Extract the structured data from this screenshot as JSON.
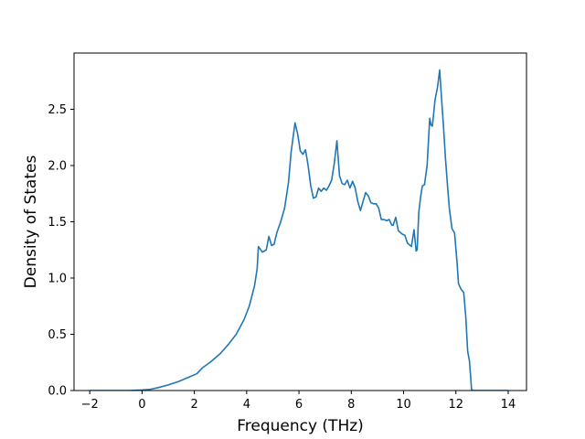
{
  "chart_data": {
    "type": "line",
    "title": "",
    "xlabel": "Frequency (THz)",
    "ylabel": "Density of States",
    "xlim": [
      -2.6,
      14.7
    ],
    "ylim": [
      0,
      3.0
    ],
    "xticks": [
      -2,
      0,
      2,
      4,
      6,
      8,
      10,
      12,
      14
    ],
    "yticks": [
      0.0,
      0.5,
      1.0,
      1.5,
      2.0,
      2.5
    ],
    "xtick_labels": [
      "−2",
      "0",
      "2",
      "4",
      "6",
      "8",
      "10",
      "12",
      "14"
    ],
    "ytick_labels": [
      "0.0",
      "0.5",
      "1.0",
      "1.5",
      "2.0",
      "2.5"
    ],
    "grid": false,
    "line_color": "#1f77b4",
    "series": [
      {
        "x": [
          -2.0,
          -1.5,
          -1.0,
          -0.5,
          0.0,
          0.3,
          0.6,
          1.0,
          1.4,
          1.8,
          2.1,
          2.3,
          2.6,
          3.0,
          3.3,
          3.6,
          3.9,
          4.1,
          4.3,
          4.4,
          4.45,
          4.6,
          4.75,
          4.85,
          4.95,
          5.05,
          5.15,
          5.3,
          5.45,
          5.6,
          5.7,
          5.85,
          5.95,
          6.05,
          6.15,
          6.25,
          6.35,
          6.45,
          6.55,
          6.65,
          6.75,
          6.85,
          6.95,
          7.05,
          7.15,
          7.25,
          7.35,
          7.45,
          7.55,
          7.65,
          7.75,
          7.85,
          7.95,
          8.05,
          8.15,
          8.25,
          8.35,
          8.45,
          8.55,
          8.65,
          8.75,
          8.85,
          8.95,
          9.05,
          9.15,
          9.25,
          9.35,
          9.45,
          9.55,
          9.6,
          9.7,
          9.8,
          9.95,
          10.05,
          10.15,
          10.25,
          10.3,
          10.4,
          10.48,
          10.52,
          10.58,
          10.65,
          10.72,
          10.8,
          10.9,
          11.0,
          11.05,
          11.1,
          11.15,
          11.2,
          11.3,
          11.38,
          11.45,
          11.52,
          11.6,
          11.68,
          11.75,
          11.85,
          11.95,
          12.05,
          12.1,
          12.2,
          12.3,
          12.38,
          12.45,
          12.52,
          12.6,
          12.65,
          12.8,
          13.2,
          13.6,
          14.0
        ],
        "values": [
          0.0,
          0.0,
          0.0,
          0.0,
          0.005,
          0.01,
          0.025,
          0.05,
          0.08,
          0.12,
          0.15,
          0.2,
          0.25,
          0.33,
          0.41,
          0.5,
          0.63,
          0.75,
          0.93,
          1.08,
          1.28,
          1.23,
          1.25,
          1.37,
          1.29,
          1.3,
          1.4,
          1.5,
          1.62,
          1.85,
          2.12,
          2.38,
          2.28,
          2.13,
          2.1,
          2.14,
          2.0,
          1.82,
          1.71,
          1.72,
          1.8,
          1.77,
          1.8,
          1.78,
          1.82,
          1.87,
          2.02,
          2.22,
          1.91,
          1.84,
          1.83,
          1.87,
          1.8,
          1.86,
          1.8,
          1.68,
          1.6,
          1.68,
          1.76,
          1.73,
          1.67,
          1.66,
          1.66,
          1.62,
          1.52,
          1.52,
          1.51,
          1.52,
          1.47,
          1.47,
          1.54,
          1.42,
          1.39,
          1.38,
          1.31,
          1.29,
          1.28,
          1.43,
          1.24,
          1.25,
          1.58,
          1.72,
          1.82,
          1.83,
          2.0,
          2.42,
          2.36,
          2.35,
          2.46,
          2.58,
          2.7,
          2.85,
          2.6,
          2.37,
          2.07,
          1.82,
          1.62,
          1.44,
          1.4,
          1.12,
          0.95,
          0.9,
          0.87,
          0.65,
          0.35,
          0.26,
          0.01,
          0.0,
          0.0,
          0.0,
          0.0,
          0.0
        ]
      }
    ]
  }
}
